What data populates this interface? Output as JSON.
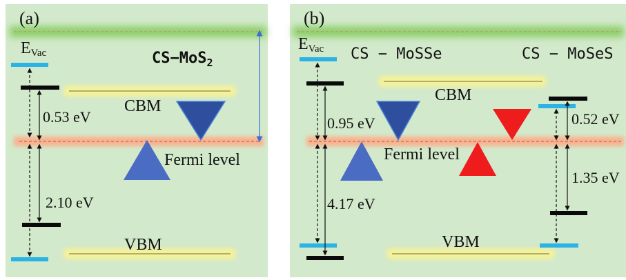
{
  "colors": {
    "panel_background": "#d3e9cb",
    "vacuum_glow": "#8bd06a",
    "fermi_glow": "#f6b48f",
    "fermi_dash": "#e53e3e",
    "band_highlight": "#f4f29a",
    "level_blue": "#2bb3e6",
    "level_black": "#0a0a0a",
    "triangle_navy": "#2f4f9e",
    "triangle_blue": "#4a6cc2",
    "triangle_red": "#ee1c1c",
    "range_arrow": "#3d6fd6"
  },
  "panel_a": {
    "label": "(a)",
    "vacuum_label": "E",
    "vacuum_sub": "Vac",
    "material_main": "CS−MoS",
    "material_sub": "2",
    "cbm_label": "CBM",
    "vbm_label": "VBM",
    "fermi_label": "Fermi level",
    "gap_upper": "0.53 eV",
    "gap_lower": "2.10 eV"
  },
  "panel_b": {
    "label": "(b)",
    "vacuum_label": "E",
    "vacuum_sub": "Vac",
    "material_left": "CS − MoSSe",
    "material_right": "CS − MoSeS",
    "cbm_label": "CBM",
    "vbm_label": "VBM",
    "fermi_label": "Fermi level",
    "gap_left_upper": "0.95 eV",
    "gap_left_lower": "4.17 eV",
    "gap_right_upper": "0.52 eV",
    "gap_right_lower": "1.35 eV"
  },
  "icons": {
    "triangles": [
      "triangle-down-icon",
      "triangle-up-icon"
    ]
  }
}
